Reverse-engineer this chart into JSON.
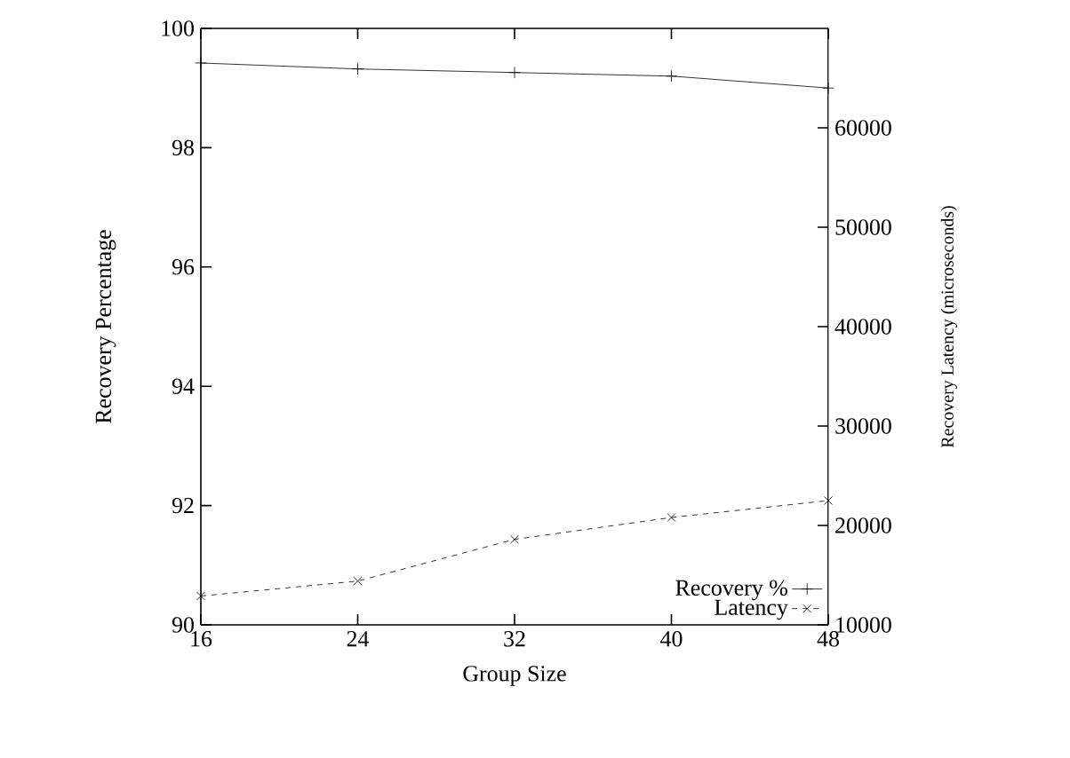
{
  "chart_data": {
    "type": "line",
    "xlabel": "Group Size",
    "ylabel": "Recovery Percentage",
    "y2label": "Recovery Latency (microseconds)",
    "x": [
      16,
      24,
      32,
      40,
      48
    ],
    "series": [
      {
        "name": "Recovery %",
        "color": "#000000",
        "values": [
          99.42,
          99.32,
          99.26,
          99.2,
          99.0
        ],
        "marker": "plus",
        "line_style": "solid"
      },
      {
        "name": "Latency",
        "color": "#000000",
        "values": [
          12900,
          14400,
          18600,
          20800,
          22500
        ],
        "axis": "y2",
        "marker": "cross",
        "line_style": "dashed"
      }
    ],
    "xlim": [
      16,
      48
    ],
    "xticks": [
      16,
      24,
      32,
      40,
      48
    ],
    "ylim": [
      90,
      100
    ],
    "yticks": [
      90,
      92,
      94,
      96,
      98,
      100
    ],
    "y2lim": [
      10000,
      70000
    ],
    "y2ticks": [
      10000,
      20000,
      30000,
      40000,
      50000,
      60000
    ],
    "legend": "bottom right",
    "grid": false
  }
}
